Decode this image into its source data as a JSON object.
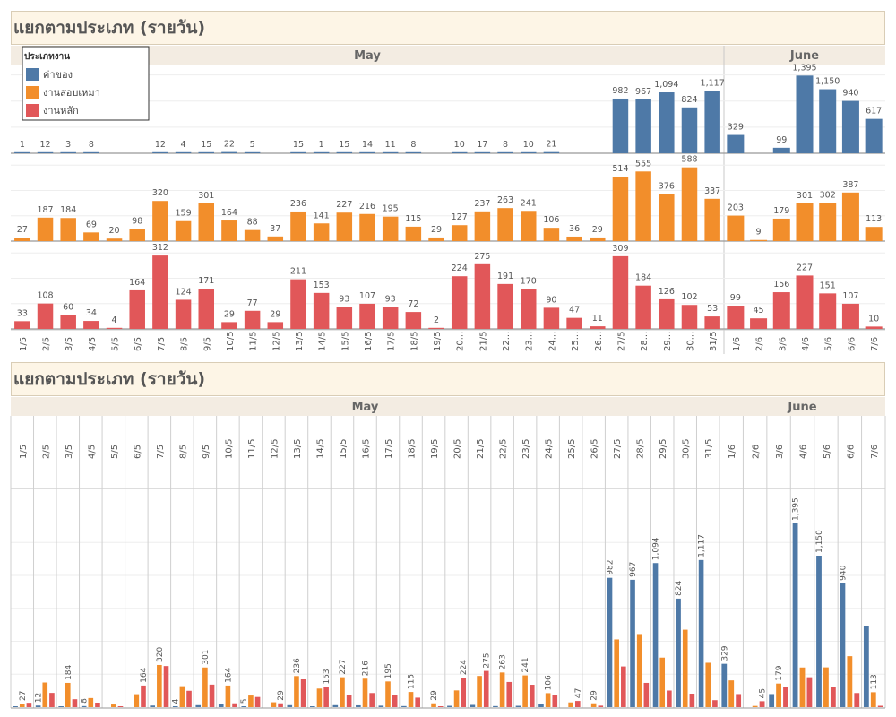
{
  "sections": [
    {
      "title": "แยกตามประเภท (รายวัน)"
    },
    {
      "title": "แยกตามประเภท (รายวัน)"
    }
  ],
  "chart_data": [
    {
      "type": "bar",
      "layout": "small-multiples",
      "title": "แยกตามประเภท (รายวัน)",
      "months": [
        {
          "label": "May",
          "span": 31
        },
        {
          "label": "June",
          "span": 7
        }
      ],
      "categories": [
        "1/5",
        "2/5",
        "3/5",
        "4/5",
        "5/5",
        "6/5",
        "7/5",
        "8/5",
        "9/5",
        "10/5",
        "11/5",
        "12/5",
        "13/5",
        "14/5",
        "15/5",
        "16/5",
        "17/5",
        "18/5",
        "19/5",
        "20...",
        "21/5",
        "22...",
        "23...",
        "24...",
        "25...",
        "26...",
        "27/5",
        "28...",
        "29...",
        "30...",
        "31/5",
        "1/6",
        "2/6",
        "3/6",
        "4/6",
        "5/6",
        "6/6",
        "7/6"
      ],
      "legend": {
        "title": "ประเภทงาน",
        "position": "top-left"
      },
      "series": [
        {
          "name": "ค่าของ",
          "color": "#4e79a7",
          "values": [
            1,
            12,
            3,
            8,
            null,
            null,
            12,
            4,
            15,
            22,
            5,
            null,
            15,
            1,
            15,
            14,
            11,
            8,
            null,
            10,
            17,
            8,
            10,
            21,
            null,
            null,
            982,
            967,
            1094,
            824,
            1117,
            329,
            null,
            99,
            1395,
            1150,
            940,
            617
          ]
        },
        {
          "name": "งานสอบเหมา",
          "color": "#f28e2b",
          "values": [
            27,
            187,
            184,
            69,
            20,
            98,
            320,
            159,
            301,
            164,
            88,
            37,
            236,
            141,
            227,
            216,
            195,
            115,
            29,
            127,
            237,
            263,
            241,
            106,
            36,
            29,
            514,
            555,
            376,
            588,
            337,
            203,
            9,
            179,
            301,
            302,
            387,
            113
          ]
        },
        {
          "name": "งานหลัก",
          "color": "#e15759",
          "values": [
            33,
            108,
            60,
            34,
            4,
            164,
            312,
            124,
            171,
            29,
            77,
            29,
            211,
            153,
            93,
            107,
            93,
            72,
            2,
            224,
            275,
            191,
            170,
            90,
            47,
            11,
            309,
            184,
            126,
            102,
            53,
            99,
            45,
            156,
            227,
            151,
            107,
            10
          ]
        }
      ]
    },
    {
      "type": "bar",
      "layout": "grouped",
      "title": "แยกตามประเภท (รายวัน)",
      "months": [
        {
          "label": "May",
          "span": 31
        },
        {
          "label": "June",
          "span": 7
        }
      ],
      "categories": [
        "1/5",
        "2/5",
        "3/5",
        "4/5",
        "5/5",
        "6/5",
        "7/5",
        "8/5",
        "9/5",
        "10/5",
        "11/5",
        "12/5",
        "13/5",
        "14/5",
        "15/5",
        "16/5",
        "17/5",
        "18/5",
        "19/5",
        "20/5",
        "21/5",
        "22/5",
        "23/5",
        "24/5",
        "25/5",
        "26/5",
        "27/5",
        "28/5",
        "29/5",
        "30/5",
        "31/5",
        "1/6",
        "2/6",
        "3/6",
        "4/6",
        "5/6",
        "6/6",
        "7/6"
      ],
      "label_series": [
        1,
        0,
        1,
        0,
        0,
        2,
        1,
        0,
        1,
        1,
        0,
        2,
        1,
        2,
        1,
        1,
        1,
        1,
        1,
        2,
        2,
        1,
        1,
        1,
        2,
        1,
        0,
        0,
        0,
        0,
        0,
        0,
        2,
        1,
        0,
        0,
        0,
        1
      ],
      "series_colors": [
        "#4e79a7",
        "#f28e2b",
        "#e15759"
      ]
    }
  ]
}
